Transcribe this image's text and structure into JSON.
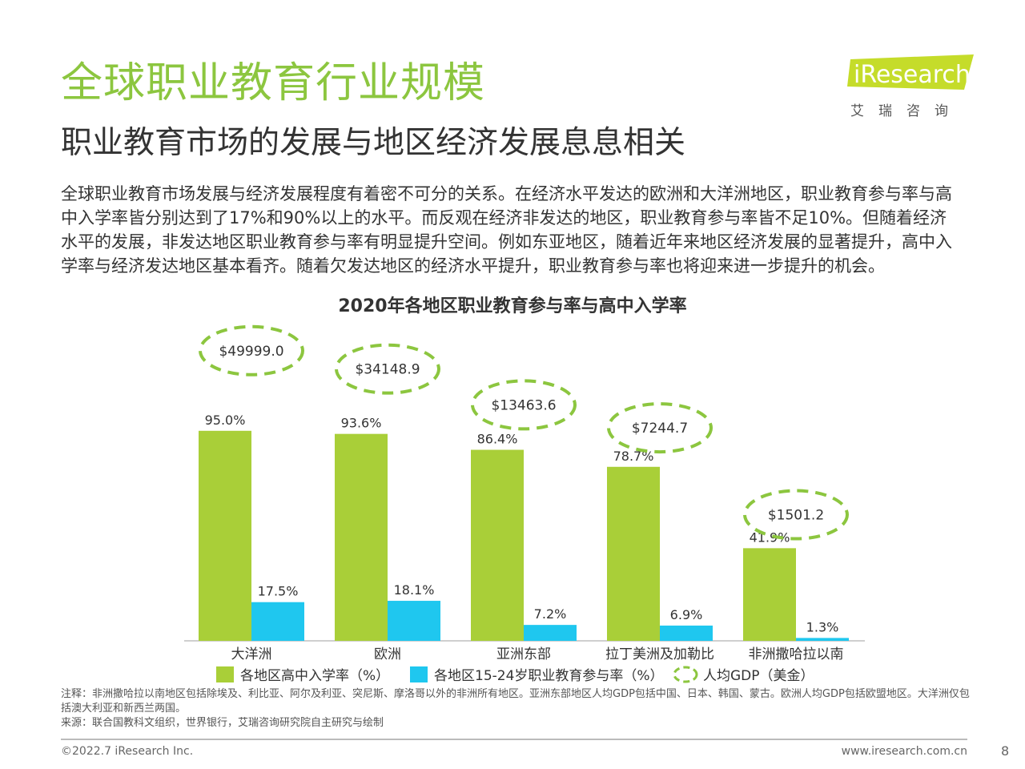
{
  "header": {
    "title": "全球职业教育行业规模",
    "subtitle": "职业教育市场的发展与地区经济发展息息相关"
  },
  "logo": {
    "brand": "iResearch",
    "cn": "艾瑞咨询",
    "color": "#C5DC2A"
  },
  "intro": {
    "lines": [
      "全球职业教育市场发展与经济发展程度有着密不可分的关系。在经济水平发达的欧洲和大洋洲地区，职业教育参与率与高",
      "中入学率皆分别达到了17%和90%以上的水平。而反观在经济非发达的地区，职业教育参与率皆不足10%。但随着经济",
      "水平的发展，非发达地区职业教育参与率有明显提升空间。例如东亚地区，随着近年来地区经济发展的显著提升，高中入",
      "学率与经济发达地区基本看齐。随着欠发达地区的经济水平提升，职业教育参与率也将迎来进一步提升的机会。"
    ]
  },
  "chart_data": {
    "type": "bar",
    "title": "2020年各地区职业教育参与率与高中入学率",
    "categories": [
      "大洋洲",
      "欧洲",
      "亚洲东部",
      "拉丁美洲及加勒比",
      "非洲撒哈拉以南"
    ],
    "series": [
      {
        "name": "各地区高中入学率（%）",
        "color": "#A9CF38",
        "values": [
          95.0,
          93.6,
          86.4,
          78.7,
          41.9
        ],
        "labels": [
          "95.0%",
          "93.6%",
          "86.4%",
          "78.7%",
          "41.9%"
        ]
      },
      {
        "name": "各地区15-24岁职业教育参与率（%）",
        "color": "#1FC7EF",
        "values": [
          17.5,
          18.1,
          7.2,
          6.9,
          1.3
        ],
        "labels": [
          "17.5%",
          "18.1%",
          "7.2%",
          "6.9%",
          "1.3%"
        ]
      }
    ],
    "gdp": {
      "name": "人均GDP（美金）",
      "color": "#8CC63F",
      "values": [
        49999.0,
        34148.9,
        13463.6,
        7244.7,
        1501.2
      ],
      "labels": [
        "$49999.0",
        "$34148.9",
        "$13463.6",
        "$7244.7",
        "$1501.2"
      ]
    },
    "ylim": [
      0,
      100
    ],
    "grid": false,
    "legend": "bottom"
  },
  "notes": {
    "note": "注释：非洲撒哈拉以南地区包括除埃及、利比亚、阿尔及利亚、突尼斯、摩洛哥以外的非洲所有地区。亚洲东部地区人均GDP包括中国、日本、韩国、蒙古。欧洲人均GDP包括欧盟地区。大洋洲仅包括澳大利亚和新西兰两国。",
    "source": "来源：联合国教科文组织，世界银行，艾瑞咨询研究院自主研究与绘制"
  },
  "footer": {
    "copyright": "©2022.7 iResearch Inc.",
    "url": "www.iresearch.com.cn",
    "page": "8"
  }
}
